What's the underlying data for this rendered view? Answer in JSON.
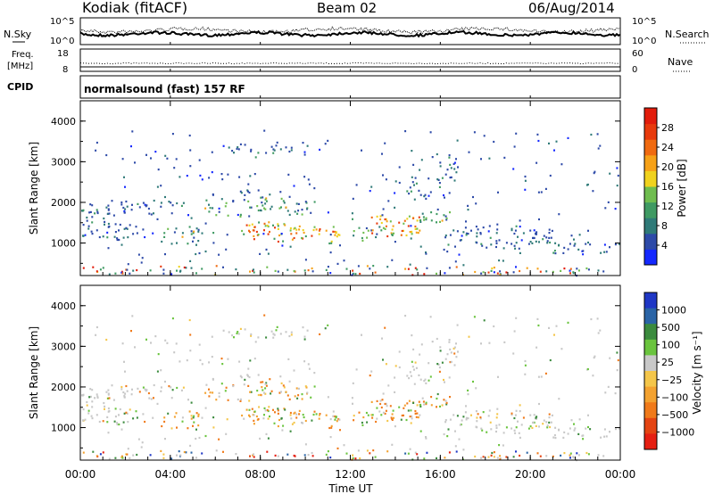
{
  "header": {
    "station": "Kodiak (fitACF)",
    "beam": "Beam 02",
    "date": "06/Aug/2014"
  },
  "noise_panel": {
    "left_label": "N.Sky",
    "right_label": "N.Search",
    "left_ticks": [
      "10^5",
      "10^0"
    ],
    "right_ticks": [
      "10^5",
      "10^0"
    ]
  },
  "freq_panel": {
    "left_label_top": "Freq.",
    "left_label_bottom": "[MHz]",
    "right_label": "Nave",
    "left_ticks": [
      "18",
      "8"
    ],
    "right_ticks": [
      "60",
      "0"
    ]
  },
  "cpid_panel": {
    "label": "CPID",
    "text": "normalsound (fast) 157 RF"
  },
  "chart_data": [
    {
      "type": "heatmap",
      "title": "Power",
      "ylabel": "Slant Range [km]",
      "y_ticks": [
        "1000",
        "2000",
        "3000",
        "4000"
      ],
      "ylim": [
        200,
        4500
      ],
      "xlim": [
        0,
        24
      ],
      "colorbar_label": "Power [dB]",
      "colorbar_ticks": [
        "4",
        "8",
        "12",
        "16",
        "20",
        "24",
        "28"
      ],
      "colors": [
        "#1428ff",
        "#2d4aa8",
        "#2f7a78",
        "#3f9a63",
        "#6fbd4f",
        "#f0d21e",
        "#f6a117",
        "#f06a10",
        "#e83a0c",
        "#e21c0b"
      ]
    },
    {
      "type": "heatmap",
      "title": "Velocity",
      "ylabel": "Slant Range [km]",
      "y_ticks": [
        "1000",
        "2000",
        "3000",
        "4000"
      ],
      "ylim": [
        200,
        4500
      ],
      "xlim": [
        0,
        24
      ],
      "colorbar_label": "Velocity [m s⁻¹]",
      "colorbar_ticks": [
        "1000",
        "500",
        "100",
        "25",
        "−25",
        "−100",
        "−500",
        "−1000"
      ],
      "colors": [
        "#1f37c5",
        "#2a64a6",
        "#3b8b3e",
        "#6ac43e",
        "#c8c8c8",
        "#f4c64a",
        "#f3a230",
        "#f07a1a",
        "#e44412",
        "#e51f12"
      ]
    }
  ],
  "x_axis": {
    "ticks": [
      "00:00",
      "04:00",
      "08:00",
      "12:00",
      "16:00",
      "20:00",
      "00:00"
    ],
    "label": "Time UT"
  }
}
